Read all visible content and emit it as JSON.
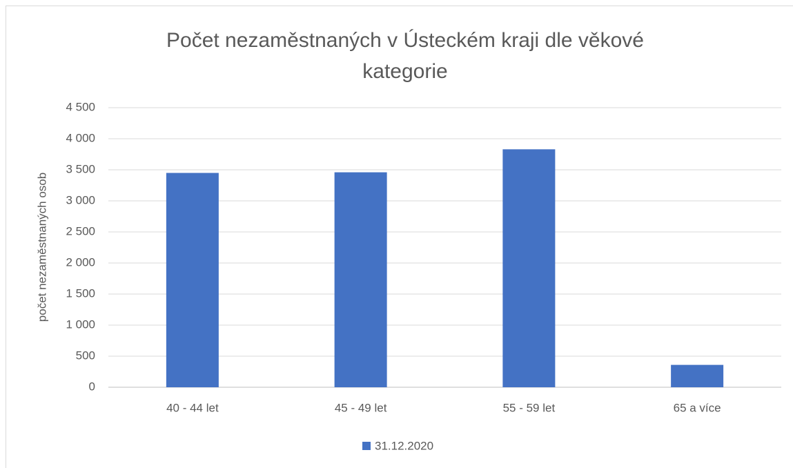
{
  "chart_data": {
    "type": "bar",
    "title": "Počet nezaměstnaných v Ústeckém kraji dle věkové kategorie",
    "y_label": "počet nezaměstnaných osob",
    "categories": [
      "40 - 44 let",
      "45 - 49 let",
      "55 - 59 let",
      "65 a více"
    ],
    "series": [
      {
        "name": "31.12.2020",
        "color": "#4472c4",
        "values": [
          3450,
          3460,
          3830,
          360
        ]
      }
    ],
    "ylim": [
      0,
      4500
    ],
    "yticks": [
      0,
      500,
      {
        "value": 1000,
        "label": "1 000"
      },
      {
        "value": 1500,
        "label": "1 500"
      },
      {
        "value": 2000,
        "label": "2 000"
      },
      {
        "value": 2500,
        "label": "2 500"
      },
      {
        "value": 3000,
        "label": "3 000"
      },
      {
        "value": 3500,
        "label": "3 500"
      },
      {
        "value": 4000,
        "label": "4 000"
      },
      {
        "value": 4500,
        "label": "4 500"
      }
    ],
    "grid": true,
    "legend": "bottom"
  }
}
